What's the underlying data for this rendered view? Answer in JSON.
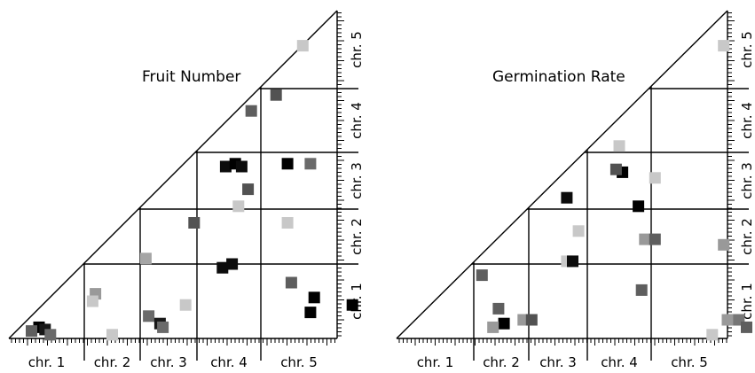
{
  "chart_data": [
    {
      "type": "heatmap",
      "title": "Fruit Number",
      "x_categories": [
        "chr. 1",
        "chr. 2",
        "chr. 3",
        "chr. 4",
        "chr. 5"
      ],
      "y_categories": [
        "chr. 1",
        "chr. 2",
        "chr. 3",
        "chr. 4",
        "chr. 5"
      ],
      "chromosome_extents": [
        1.0,
        0.95,
        0.9,
        1.1,
        1.3
      ],
      "grayscale": "darker = higher intensity (0-1)",
      "points": [
        {
          "x": 0.4,
          "y": 0.15,
          "value": 1.0
        },
        {
          "x": 0.48,
          "y": 0.12,
          "value": 0.9
        },
        {
          "x": 0.3,
          "y": 0.1,
          "value": 0.6
        },
        {
          "x": 0.55,
          "y": 0.05,
          "value": 0.55
        },
        {
          "x": 1.2,
          "y": 0.6,
          "value": 0.35
        },
        {
          "x": 1.15,
          "y": 0.5,
          "value": 0.15
        },
        {
          "x": 1.5,
          "y": 0.05,
          "value": 0.15
        },
        {
          "x": 2.1,
          "y": 1.1,
          "value": 0.3
        },
        {
          "x": 2.15,
          "y": 0.3,
          "value": 0.55
        },
        {
          "x": 2.35,
          "y": 0.2,
          "value": 0.9
        },
        {
          "x": 2.4,
          "y": 0.15,
          "value": 0.55
        },
        {
          "x": 2.8,
          "y": 0.45,
          "value": 0.15
        },
        {
          "x": 2.95,
          "y": 1.75,
          "value": 0.65
        },
        {
          "x": 3.45,
          "y": 2.75,
          "value": 0.95
        },
        {
          "x": 3.6,
          "y": 2.8,
          "value": 1.0
        },
        {
          "x": 3.7,
          "y": 2.75,
          "value": 0.95
        },
        {
          "x": 3.8,
          "y": 2.35,
          "value": 0.65
        },
        {
          "x": 3.65,
          "y": 2.05,
          "value": 0.15
        },
        {
          "x": 3.4,
          "y": 0.95,
          "value": 0.95
        },
        {
          "x": 3.55,
          "y": 1.0,
          "value": 0.95
        },
        {
          "x": 3.85,
          "y": 3.65,
          "value": 0.6
        },
        {
          "x": 4.2,
          "y": 3.9,
          "value": 0.65
        },
        {
          "x": 4.55,
          "y": 4.55,
          "value": 0.15
        },
        {
          "x": 4.35,
          "y": 2.8,
          "value": 1.0
        },
        {
          "x": 4.65,
          "y": 2.8,
          "value": 0.55
        },
        {
          "x": 4.35,
          "y": 1.75,
          "value": 0.15
        },
        {
          "x": 4.4,
          "y": 0.75,
          "value": 0.6
        },
        {
          "x": 4.7,
          "y": 0.55,
          "value": 1.0
        },
        {
          "x": 4.65,
          "y": 0.35,
          "value": 1.0
        },
        {
          "x": 5.2,
          "y": 0.45,
          "value": 1.0
        }
      ]
    },
    {
      "type": "heatmap",
      "title": "Germination Rate",
      "x_categories": [
        "chr. 1",
        "chr. 2",
        "chr. 3",
        "chr. 4",
        "chr. 5"
      ],
      "y_categories": [
        "chr. 1",
        "chr. 2",
        "chr. 3",
        "chr. 4",
        "chr. 5"
      ],
      "chromosome_extents": [
        1.0,
        0.95,
        0.9,
        1.1,
        1.3
      ],
      "grayscale": "darker = higher intensity (0-1)",
      "points": [
        {
          "x": 1.15,
          "y": 0.85,
          "value": 0.6
        },
        {
          "x": 1.45,
          "y": 0.4,
          "value": 0.6
        },
        {
          "x": 1.55,
          "y": 0.2,
          "value": 1.0
        },
        {
          "x": 1.35,
          "y": 0.15,
          "value": 0.35
        },
        {
          "x": 1.9,
          "y": 0.25,
          "value": 0.35
        },
        {
          "x": 2.05,
          "y": 0.25,
          "value": 0.65
        },
        {
          "x": 2.65,
          "y": 1.05,
          "value": 0.15
        },
        {
          "x": 2.75,
          "y": 1.05,
          "value": 0.95
        },
        {
          "x": 2.65,
          "y": 2.2,
          "value": 0.95
        },
        {
          "x": 2.85,
          "y": 1.6,
          "value": 0.15
        },
        {
          "x": 3.55,
          "y": 2.65,
          "value": 1.0
        },
        {
          "x": 3.45,
          "y": 2.7,
          "value": 0.65
        },
        {
          "x": 3.8,
          "y": 2.05,
          "value": 1.0
        },
        {
          "x": 3.9,
          "y": 1.45,
          "value": 0.35
        },
        {
          "x": 4.05,
          "y": 1.45,
          "value": 0.6
        },
        {
          "x": 4.05,
          "y": 2.55,
          "value": 0.15
        },
        {
          "x": 3.5,
          "y": 3.1,
          "value": 0.15
        },
        {
          "x": 3.85,
          "y": 0.65,
          "value": 0.6
        },
        {
          "x": 4.95,
          "y": 4.55,
          "value": 0.15
        },
        {
          "x": 4.95,
          "y": 1.35,
          "value": 0.35
        },
        {
          "x": 5.0,
          "y": 0.25,
          "value": 0.35
        },
        {
          "x": 5.15,
          "y": 0.25,
          "value": 0.5
        },
        {
          "x": 5.25,
          "y": 0.15,
          "value": 0.6
        },
        {
          "x": 4.8,
          "y": 0.05,
          "value": 0.15
        }
      ]
    }
  ]
}
